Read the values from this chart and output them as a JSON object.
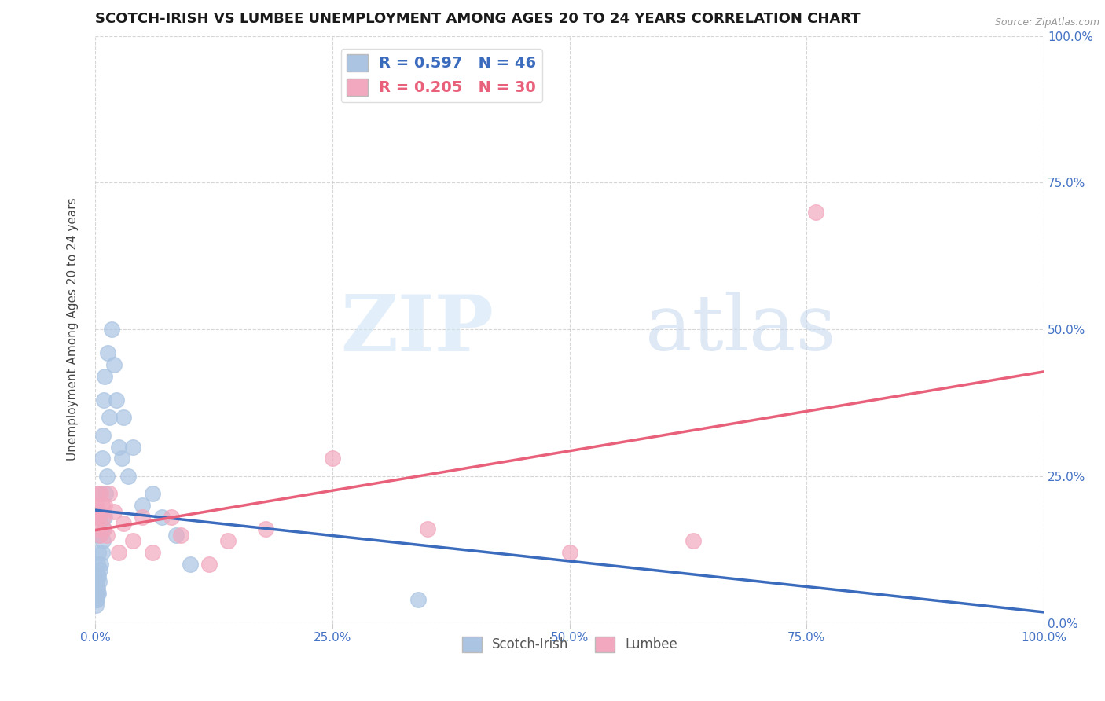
{
  "title": "SCOTCH-IRISH VS LUMBEE UNEMPLOYMENT AMONG AGES 20 TO 24 YEARS CORRELATION CHART",
  "source": "Source: ZipAtlas.com",
  "ylabel": "Unemployment Among Ages 20 to 24 years",
  "watermark_zip": "ZIP",
  "watermark_atlas": "atlas",
  "scotch_irish_R": 0.597,
  "scotch_irish_N": 46,
  "lumbee_R": 0.205,
  "lumbee_N": 30,
  "scotch_irish_color": "#aac4e2",
  "lumbee_color": "#f2a8be",
  "scotch_irish_line_color": "#3a6bbd",
  "lumbee_line_color": "#e8607a",
  "title_color": "#1a1a1a",
  "axis_label_color": "#4472c4",
  "grid_color": "#cccccc",
  "background_color": "#ffffff",
  "scotch_irish_x": [
    0.0005,
    0.0007,
    0.001,
    0.001,
    0.0012,
    0.0015,
    0.0015,
    0.002,
    0.002,
    0.002,
    0.0025,
    0.003,
    0.003,
    0.003,
    0.004,
    0.004,
    0.005,
    0.005,
    0.006,
    0.006,
    0.007,
    0.007,
    0.008,
    0.008,
    0.009,
    0.009,
    0.01,
    0.01,
    0.011,
    0.012,
    0.013,
    0.015,
    0.017,
    0.02,
    0.022,
    0.025,
    0.028,
    0.03,
    0.035,
    0.04,
    0.05,
    0.06,
    0.07,
    0.085,
    0.1,
    0.34
  ],
  "scotch_irish_y": [
    0.03,
    0.04,
    0.04,
    0.06,
    0.05,
    0.04,
    0.07,
    0.05,
    0.08,
    0.1,
    0.06,
    0.05,
    0.08,
    0.12,
    0.07,
    0.15,
    0.09,
    0.18,
    0.1,
    0.22,
    0.12,
    0.28,
    0.14,
    0.32,
    0.16,
    0.38,
    0.18,
    0.42,
    0.22,
    0.25,
    0.46,
    0.35,
    0.5,
    0.44,
    0.38,
    0.3,
    0.28,
    0.35,
    0.25,
    0.3,
    0.2,
    0.22,
    0.18,
    0.15,
    0.1,
    0.04
  ],
  "lumbee_x": [
    0.0005,
    0.001,
    0.0015,
    0.002,
    0.003,
    0.004,
    0.005,
    0.006,
    0.007,
    0.008,
    0.009,
    0.01,
    0.012,
    0.015,
    0.02,
    0.025,
    0.03,
    0.04,
    0.05,
    0.06,
    0.08,
    0.09,
    0.12,
    0.14,
    0.18,
    0.25,
    0.35,
    0.5,
    0.63,
    0.76
  ],
  "lumbee_y": [
    0.18,
    0.2,
    0.16,
    0.22,
    0.19,
    0.18,
    0.15,
    0.22,
    0.2,
    0.18,
    0.16,
    0.2,
    0.15,
    0.22,
    0.19,
    0.12,
    0.17,
    0.14,
    0.18,
    0.12,
    0.18,
    0.15,
    0.1,
    0.14,
    0.16,
    0.28,
    0.16,
    0.12,
    0.14,
    0.7
  ],
  "xlim": [
    0.0,
    1.0
  ],
  "ylim": [
    0.0,
    1.0
  ]
}
